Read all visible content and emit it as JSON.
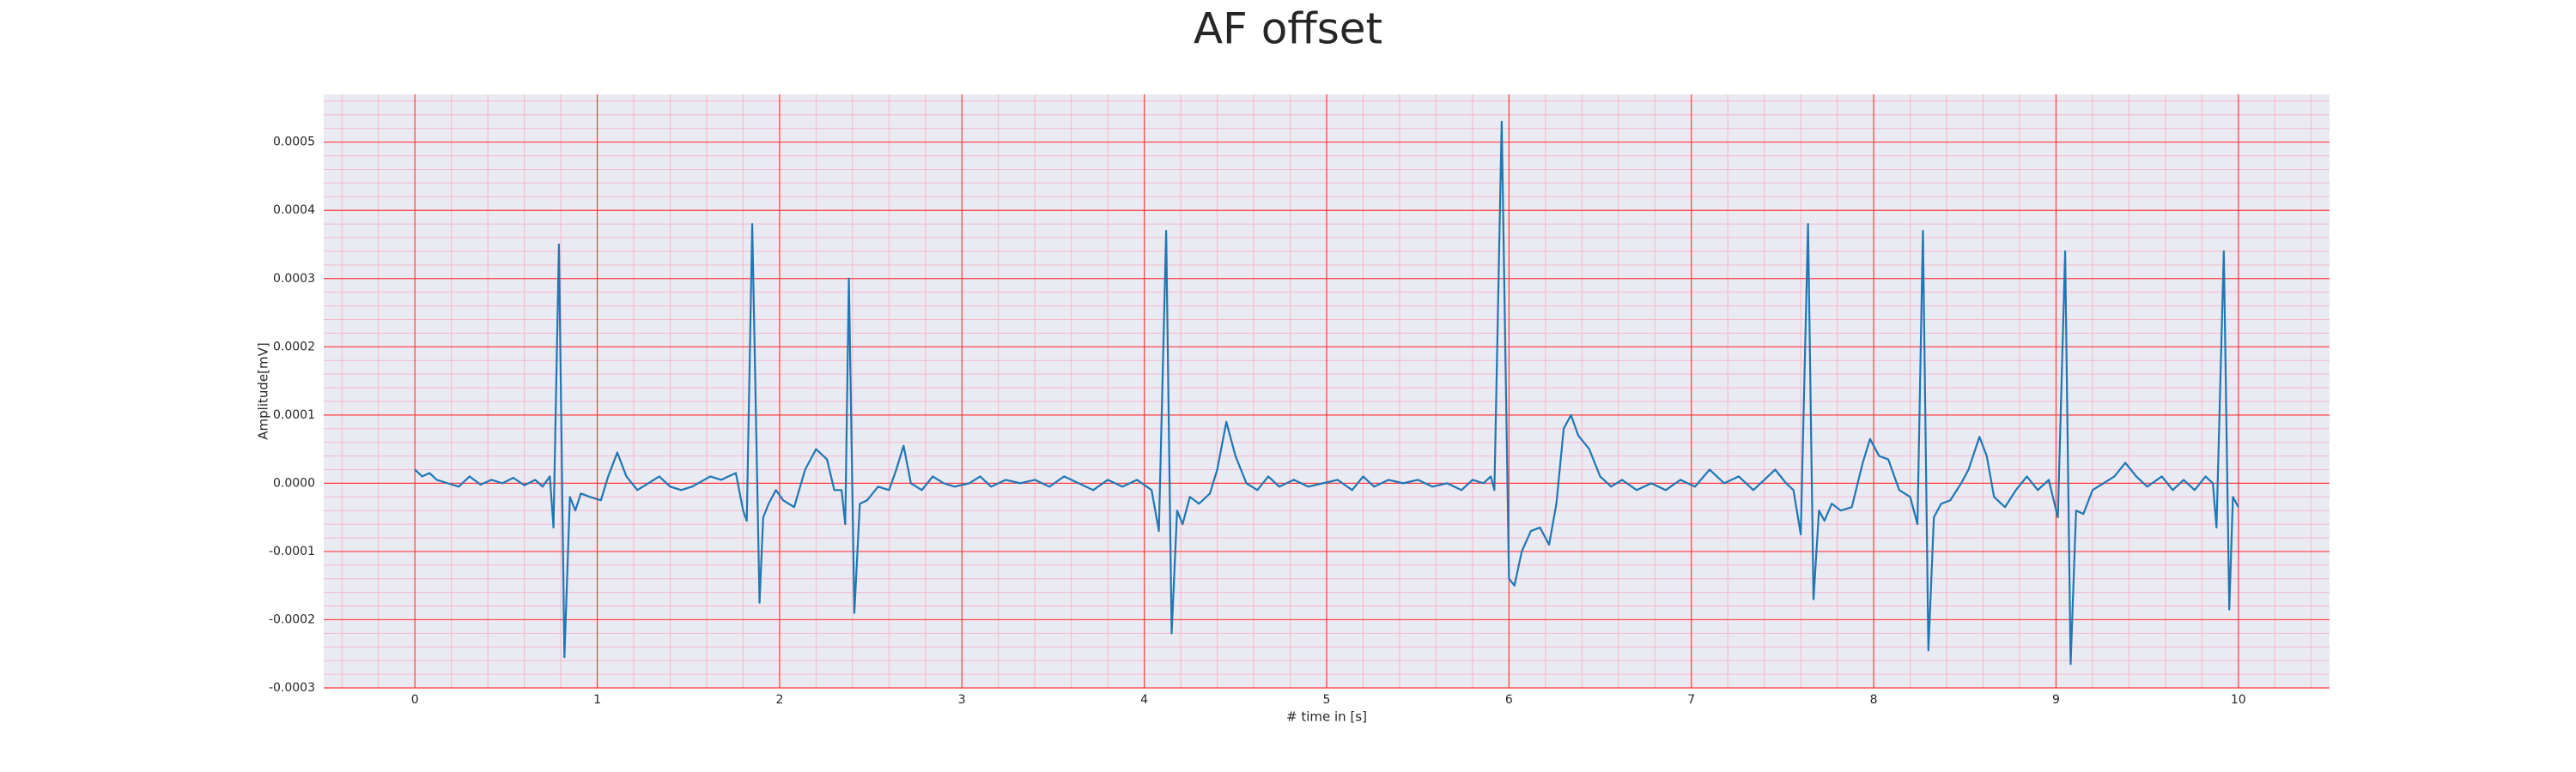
{
  "chart_data": {
    "type": "line",
    "title": "AF offset",
    "xlabel": "# time in [s]",
    "ylabel": "Amplitude[mV]",
    "color": "#1f77b4",
    "background": "#eaeaf2",
    "grid": true,
    "grid_color": "#ff3b3b",
    "minor_grid": true,
    "minor_grid_color": "#f5b8c8",
    "xlim": [
      -0.5,
      10.5
    ],
    "ylim": [
      -0.0003,
      0.00057
    ],
    "xticks": [
      0,
      1,
      2,
      3,
      4,
      5,
      6,
      7,
      8,
      9,
      10
    ],
    "yticks": [
      -0.0003,
      -0.0002,
      -0.0001,
      {
        "value": 0,
        "label": "0.0000"
      },
      0.0001,
      0.0002,
      0.0003,
      0.0004,
      0.0005
    ],
    "x": [
      0.0,
      0.04,
      0.08,
      0.12,
      0.18,
      0.24,
      0.3,
      0.36,
      0.42,
      0.48,
      0.54,
      0.6,
      0.66,
      0.7,
      0.74,
      0.76,
      0.79,
      0.82,
      0.85,
      0.88,
      0.91,
      0.96,
      1.02,
      1.06,
      1.11,
      1.16,
      1.22,
      1.28,
      1.34,
      1.4,
      1.46,
      1.52,
      1.62,
      1.68,
      1.72,
      1.76,
      1.8,
      1.82,
      1.85,
      1.89,
      1.91,
      1.94,
      1.98,
      2.02,
      2.08,
      2.14,
      2.2,
      2.26,
      2.3,
      2.34,
      2.36,
      2.38,
      2.41,
      2.44,
      2.48,
      2.54,
      2.6,
      2.64,
      2.68,
      2.72,
      2.78,
      2.84,
      2.9,
      2.96,
      3.04,
      3.1,
      3.16,
      3.24,
      3.32,
      3.4,
      3.48,
      3.56,
      3.64,
      3.72,
      3.8,
      3.88,
      3.96,
      4.04,
      4.08,
      4.12,
      4.15,
      4.18,
      4.21,
      4.25,
      4.3,
      4.36,
      4.4,
      4.45,
      4.5,
      4.56,
      4.62,
      4.68,
      4.74,
      4.82,
      4.9,
      4.98,
      5.06,
      5.14,
      5.2,
      5.26,
      5.34,
      5.42,
      5.5,
      5.58,
      5.66,
      5.74,
      5.8,
      5.86,
      5.9,
      5.92,
      5.96,
      6.0,
      6.03,
      6.07,
      6.12,
      6.17,
      6.22,
      6.26,
      6.3,
      6.34,
      6.38,
      6.44,
      6.5,
      6.56,
      6.62,
      6.7,
      6.78,
      6.86,
      6.94,
      7.02,
      7.1,
      7.18,
      7.26,
      7.34,
      7.4,
      7.46,
      7.52,
      7.56,
      7.6,
      7.64,
      7.67,
      7.7,
      7.73,
      7.77,
      7.82,
      7.88,
      7.94,
      7.98,
      8.03,
      8.08,
      8.14,
      8.2,
      8.24,
      8.27,
      8.3,
      8.33,
      8.37,
      8.42,
      8.48,
      8.52,
      8.58,
      8.62,
      8.66,
      8.72,
      8.78,
      8.84,
      8.9,
      8.96,
      9.01,
      9.05,
      9.08,
      9.11,
      9.15,
      9.2,
      9.26,
      9.32,
      9.38,
      9.44,
      9.5,
      9.58,
      9.64,
      9.7,
      9.76,
      9.82,
      9.86,
      9.88,
      9.92,
      9.95,
      9.97,
      10.0
    ],
    "values": [
      2e-05,
      1e-05,
      1.5e-05,
      5e-06,
      0.0,
      -5e-06,
      1e-05,
      -2e-06,
      5e-06,
      0.0,
      8e-06,
      -3e-06,
      5e-06,
      -5e-06,
      1e-05,
      -6.5e-05,
      0.00035,
      -0.000255,
      -2e-05,
      -4e-05,
      -1.5e-05,
      -2e-05,
      -2.5e-05,
      1e-05,
      4.5e-05,
      1e-05,
      -1e-05,
      0.0,
      1e-05,
      -5e-06,
      -1e-05,
      -5e-06,
      1e-05,
      5e-06,
      1e-05,
      1.5e-05,
      -4e-05,
      -5.5e-05,
      0.00038,
      -0.000175,
      -5e-05,
      -3e-05,
      -1e-05,
      -2.5e-05,
      -3.5e-05,
      2e-05,
      5e-05,
      3.5e-05,
      -1e-05,
      -1e-05,
      -6e-05,
      0.0003,
      -0.00019,
      -3e-05,
      -2.5e-05,
      -5e-06,
      -1e-05,
      2e-05,
      5.5e-05,
      0.0,
      -1e-05,
      1e-05,
      0.0,
      -5e-06,
      0.0,
      1e-05,
      -5e-06,
      5e-06,
      0.0,
      5e-06,
      -5e-06,
      1e-05,
      0.0,
      -1e-05,
      5e-06,
      -5e-06,
      5e-06,
      -1e-05,
      -7e-05,
      0.00037,
      -0.00022,
      -4e-05,
      -6e-05,
      -2e-05,
      -3e-05,
      -1.5e-05,
      2e-05,
      9e-05,
      4e-05,
      0.0,
      -1e-05,
      1e-05,
      -5e-06,
      5e-06,
      -5e-06,
      0.0,
      5e-06,
      -1e-05,
      1e-05,
      -5e-06,
      5e-06,
      0.0,
      5e-06,
      -5e-06,
      0.0,
      -1e-05,
      5e-06,
      0.0,
      1e-05,
      -1e-05,
      0.00053,
      -0.00014,
      -0.00015,
      -0.0001,
      -7e-05,
      -6.5e-05,
      -9e-05,
      -3e-05,
      8e-05,
      0.0001,
      7e-05,
      5e-05,
      1e-05,
      -5e-06,
      5e-06,
      -1e-05,
      0.0,
      -1e-05,
      5e-06,
      -5e-06,
      2e-05,
      0.0,
      1e-05,
      -1e-05,
      5e-06,
      2e-05,
      0.0,
      -1e-05,
      -7.5e-05,
      0.00038,
      -0.00017,
      -4e-05,
      -5.5e-05,
      -3e-05,
      -4e-05,
      -3.5e-05,
      3e-05,
      6.5e-05,
      4e-05,
      3.5e-05,
      -1e-05,
      -2e-05,
      -6e-05,
      0.00037,
      -0.000245,
      -5e-05,
      -3e-05,
      -2.5e-05,
      0.0,
      2e-05,
      6.8e-05,
      4e-05,
      -2e-05,
      -3.5e-05,
      -1e-05,
      1e-05,
      -1e-05,
      5e-06,
      -5e-05,
      0.00034,
      -0.000265,
      -4e-05,
      -4.5e-05,
      -1e-05,
      0.0,
      1e-05,
      3e-05,
      1e-05,
      -5e-06,
      1e-05,
      -1e-05,
      5e-06,
      -1e-05,
      1e-05,
      0.0,
      -6.5e-05,
      0.00034,
      -0.000185,
      -2e-05,
      -3.5e-05
    ]
  }
}
